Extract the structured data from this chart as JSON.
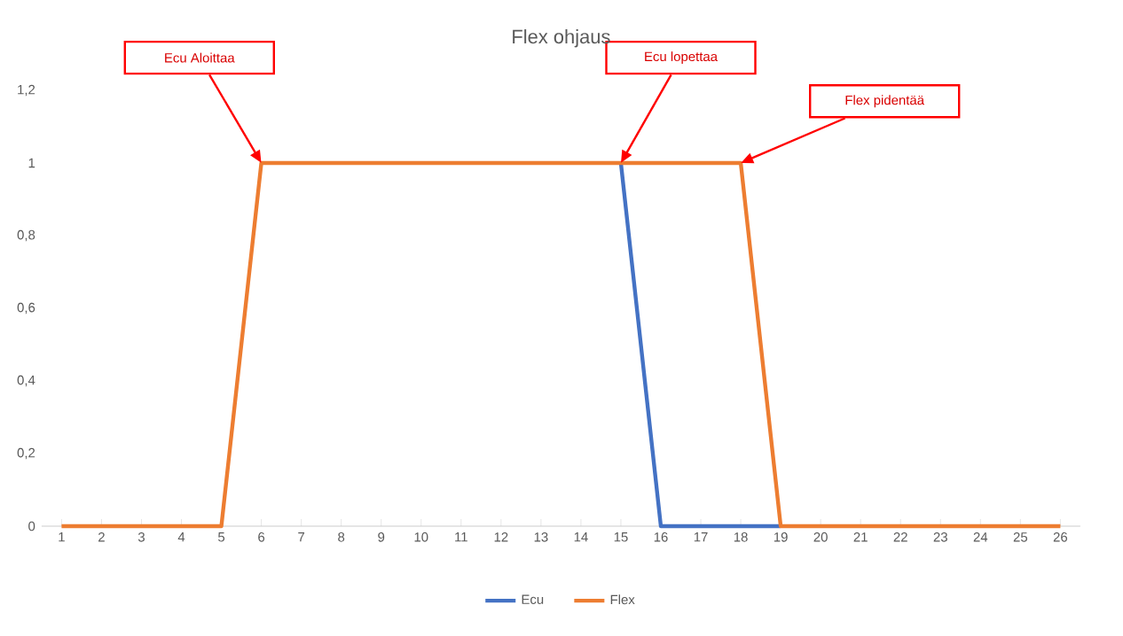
{
  "chart_data": {
    "type": "line",
    "title": "Flex ohjaus",
    "categories": [
      "1",
      "2",
      "3",
      "4",
      "5",
      "6",
      "7",
      "8",
      "9",
      "10",
      "11",
      "12",
      "13",
      "14",
      "15",
      "16",
      "17",
      "18",
      "19",
      "20",
      "21",
      "22",
      "23",
      "24",
      "25",
      "26"
    ],
    "series": [
      {
        "name": "Ecu",
        "color": "#4472c4",
        "values": [
          null,
          null,
          null,
          null,
          null,
          null,
          null,
          null,
          null,
          null,
          null,
          null,
          null,
          null,
          1,
          0,
          0,
          0,
          0,
          null,
          null,
          null,
          null,
          null,
          null,
          null
        ]
      },
      {
        "name": "Flex",
        "color": "#ed7d31",
        "values": [
          0,
          0,
          0,
          0,
          0,
          1,
          1,
          1,
          1,
          1,
          1,
          1,
          1,
          1,
          1,
          1,
          1,
          1,
          0,
          0,
          0,
          0,
          0,
          0,
          0,
          0
        ]
      }
    ],
    "ylim": [
      0,
      1.2
    ],
    "yticks": [
      0,
      {
        "value": 0.2,
        "label": "0,2"
      },
      {
        "value": 0.4,
        "label": "0,4"
      },
      {
        "value": 0.6,
        "label": "0,6"
      },
      {
        "value": 0.8,
        "label": "0,8"
      },
      1,
      {
        "value": 1.2,
        "label": "1,2"
      }
    ],
    "annotations": [
      {
        "text": "Ecu Aloittaa",
        "x": "6",
        "y": 1
      },
      {
        "text": "Ecu lopettaa",
        "x": "15",
        "y": 1
      },
      {
        "text": "Flex pidentää",
        "x": "18",
        "y": 1
      }
    ],
    "legend": "bottom",
    "marker": "none",
    "line_style": "solid",
    "grid": false
  }
}
